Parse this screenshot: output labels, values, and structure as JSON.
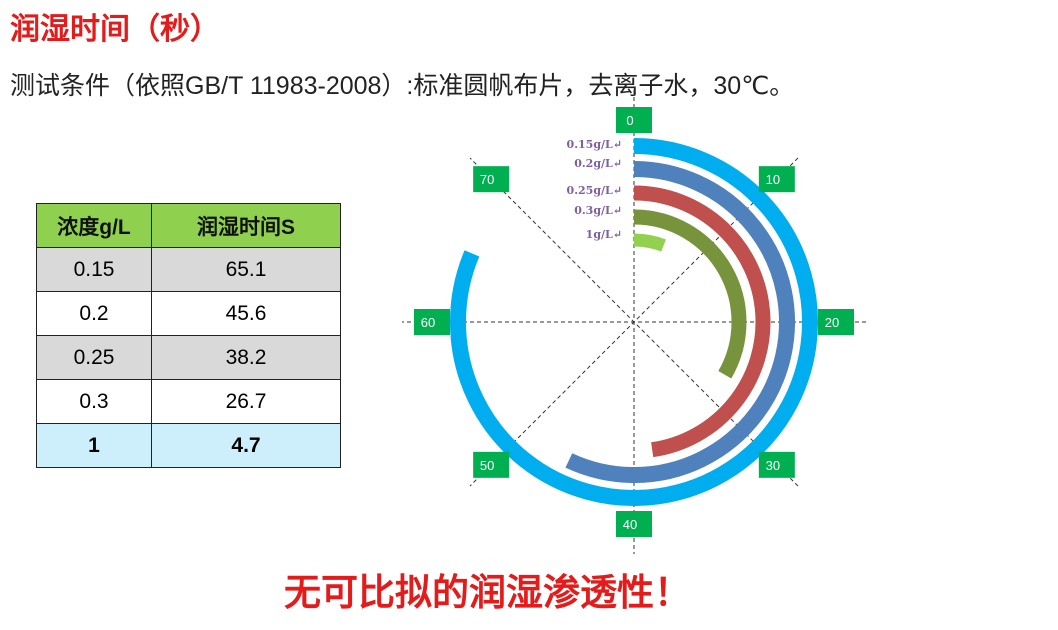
{
  "title": "润湿时间（秒）",
  "condition": "测试条件（依照GB/T 11983-2008）:标准圆帆布片，去离子水，30℃。",
  "table": {
    "headers": [
      "浓度g/L",
      "润湿时间S"
    ],
    "rows": [
      {
        "conc": "0.15",
        "time": "65.1"
      },
      {
        "conc": "0.2",
        "time": "45.6"
      },
      {
        "conc": "0.25",
        "time": "38.2"
      },
      {
        "conc": "0.3",
        "time": "26.7"
      },
      {
        "conc": "1",
        "time": "4.7"
      }
    ]
  },
  "slogan": "无可比拟的润湿渗透性！",
  "chart_data": {
    "type": "radial_bar",
    "axis_ticks": [
      "0",
      "10",
      "20",
      "30",
      "40",
      "50",
      "60",
      "70"
    ],
    "axis_range": [
      0,
      80
    ],
    "series": [
      {
        "name": "0.15g/L",
        "value": 65.1,
        "color": "#00aeef"
      },
      {
        "name": "0.2g/L",
        "value": 45.6,
        "color": "#4f81bd"
      },
      {
        "name": "0.25g/L",
        "value": 38.2,
        "color": "#c0504d"
      },
      {
        "name": "0.3g/L",
        "value": 26.7,
        "color": "#77933c"
      },
      {
        "name": "1g/L",
        "value": 4.7,
        "color": "#92d050"
      }
    ],
    "tick_label_color": "#00b050"
  }
}
